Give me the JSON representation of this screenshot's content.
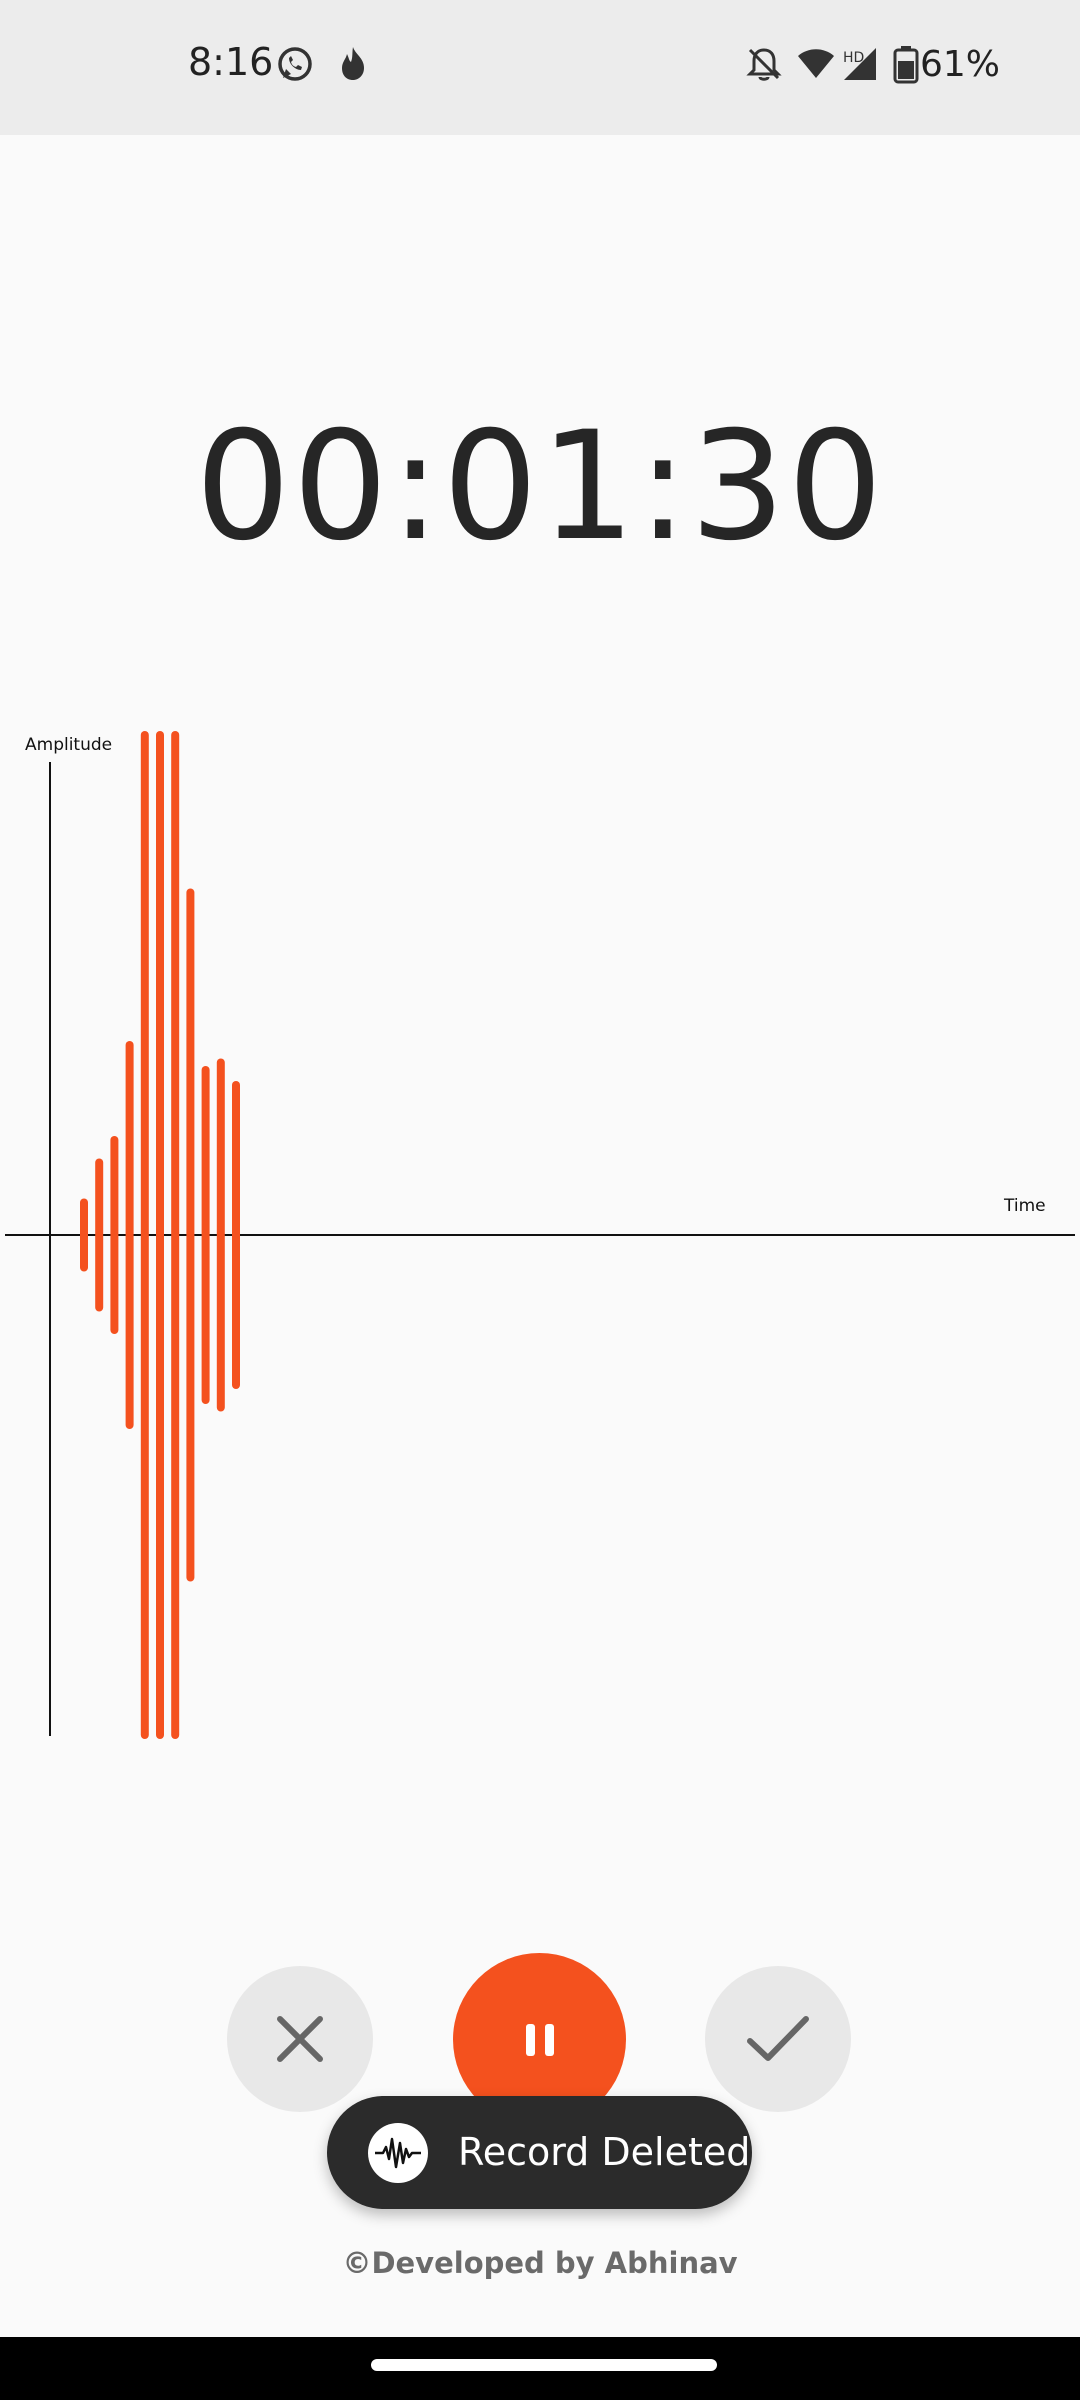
{
  "status_bar": {
    "time": "8:16",
    "battery_percent": "61%",
    "network_badge": "HD",
    "icons": [
      "whatsapp-icon",
      "tinder-flame-icon",
      "bell-off-icon",
      "wifi-icon",
      "signal-icon",
      "battery-icon"
    ]
  },
  "recorder": {
    "timer": "00:01:30",
    "y_axis_label": "Amplitude",
    "x_axis_label": "Time",
    "accent_color": "#f4511e",
    "amplitudes": [
      0.13,
      0.29,
      0.38,
      0.76,
      2.0,
      2.0,
      2.0,
      1.37,
      0.66,
      0.69,
      0.6
    ]
  },
  "controls": {
    "cancel_icon": "close-icon",
    "pause_icon": "pause-icon",
    "done_icon": "check-icon"
  },
  "toast": {
    "message": "Record Deleted",
    "icon": "waveform-icon"
  },
  "footer": {
    "credit": "©Developed by Abhinav"
  }
}
